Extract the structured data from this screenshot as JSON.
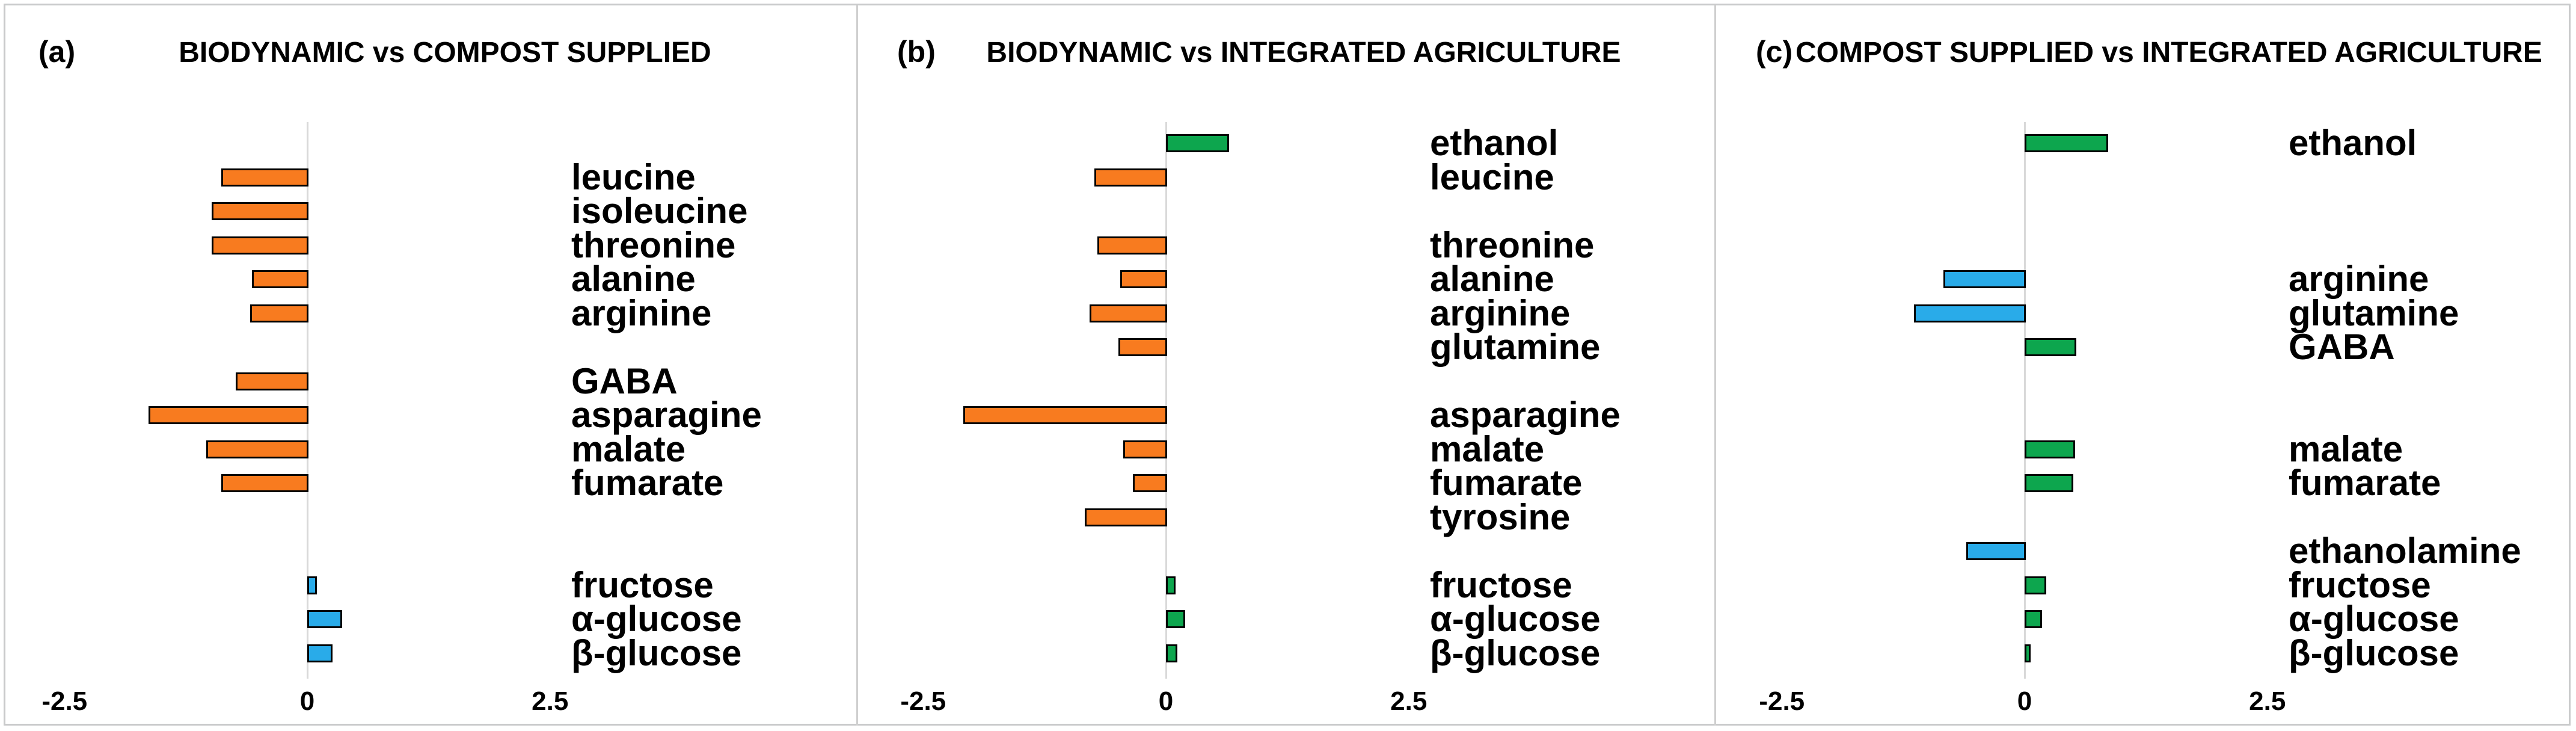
{
  "figure": {
    "colors": {
      "orange": "#f87b1f",
      "green": "#0dא4e",
      "blue": "#29abe9",
      "axis": "#d9d9d9",
      "border": "#c9cacb",
      "text": "#000000"
    },
    "x_axis": {
      "min": -2.5,
      "max": 2.5,
      "ticks": [
        {
          "label": "-2.5",
          "value": -2.5
        },
        {
          "label": "0",
          "value": 0
        },
        {
          "label": "2.5",
          "value": 2.5
        }
      ]
    }
  },
  "chart_data": [
    {
      "type": "bar",
      "orientation": "horizontal",
      "panel_label": "(a)",
      "title": "BIODYNAMIC vs COMPOST SUPPLIED",
      "xlim": [
        -2.5,
        2.5
      ],
      "x_ticks": [
        -2.5,
        0,
        2.5
      ],
      "grid": false,
      "bars": [
        {
          "label": "leucine",
          "value": -0.9,
          "color": "orange",
          "row": 2
        },
        {
          "label": "isoleucine",
          "value": -1.0,
          "color": "orange",
          "row": 3
        },
        {
          "label": "threonine",
          "value": -1.0,
          "color": "orange",
          "row": 4
        },
        {
          "label": "alanine",
          "value": -0.58,
          "color": "orange",
          "row": 5
        },
        {
          "label": "arginine",
          "value": -0.6,
          "color": "orange",
          "row": 6
        },
        {
          "label": "GABA",
          "value": -0.75,
          "color": "orange",
          "row": 8
        },
        {
          "label": "asparagine",
          "value": -1.65,
          "color": "orange",
          "row": 9
        },
        {
          "label": "malate",
          "value": -1.05,
          "color": "orange",
          "row": 10
        },
        {
          "label": "fumarate",
          "value": -0.9,
          "color": "orange",
          "row": 11
        },
        {
          "label": "fructose",
          "value": 0.1,
          "color": "blue",
          "row": 14
        },
        {
          "label": "α-glucose",
          "value": 0.36,
          "color": "blue",
          "row": 15
        },
        {
          "label": "β-glucose",
          "value": 0.26,
          "color": "blue",
          "row": 16
        }
      ]
    },
    {
      "type": "bar",
      "orientation": "horizontal",
      "panel_label": "(b)",
      "title": "BIODYNAMIC vs INTEGRATED AGRICULTURE",
      "xlim": [
        -2.5,
        2.5
      ],
      "x_ticks": [
        -2.5,
        0,
        2.5
      ],
      "grid": false,
      "bars": [
        {
          "label": "ethanol",
          "value": 0.65,
          "color": "green",
          "row": 1
        },
        {
          "label": "leucine",
          "value": -0.75,
          "color": "orange",
          "row": 2
        },
        {
          "label": "threonine",
          "value": -0.72,
          "color": "orange",
          "row": 4
        },
        {
          "label": "alanine",
          "value": -0.48,
          "color": "orange",
          "row": 5
        },
        {
          "label": "arginine",
          "value": -0.8,
          "color": "orange",
          "row": 6
        },
        {
          "label": "glutamine",
          "value": -0.5,
          "color": "orange",
          "row": 7
        },
        {
          "label": "asparagine",
          "value": -2.1,
          "color": "orange",
          "row": 9
        },
        {
          "label": "malate",
          "value": -0.45,
          "color": "orange",
          "row": 10
        },
        {
          "label": "fumarate",
          "value": -0.35,
          "color": "orange",
          "row": 11
        },
        {
          "label": "tyrosine",
          "value": -0.85,
          "color": "orange",
          "row": 12
        },
        {
          "label": "fructose",
          "value": 0.1,
          "color": "green",
          "row": 14
        },
        {
          "label": "α-glucose",
          "value": 0.2,
          "color": "green",
          "row": 15
        },
        {
          "label": "β-glucose",
          "value": 0.12,
          "color": "green",
          "row": 16
        }
      ]
    },
    {
      "type": "bar",
      "orientation": "horizontal",
      "panel_label": "(c)",
      "title": "COMPOST SUPPLIED vs INTEGRATED AGRICULTURE",
      "xlim": [
        -2.5,
        2.5
      ],
      "x_ticks": [
        -2.5,
        0,
        2.5
      ],
      "grid": false,
      "bars": [
        {
          "label": "ethanol",
          "value": 0.86,
          "color": "green",
          "row": 1
        },
        {
          "label": "arginine",
          "value": -0.85,
          "color": "blue",
          "row": 5
        },
        {
          "label": "glutamine",
          "value": -1.15,
          "color": "blue",
          "row": 6
        },
        {
          "label": "GABA",
          "value": 0.53,
          "color": "green",
          "row": 7
        },
        {
          "label": "malate",
          "value": 0.52,
          "color": "green",
          "row": 10
        },
        {
          "label": "fumarate",
          "value": 0.5,
          "color": "green",
          "row": 11
        },
        {
          "label": "ethanolamine",
          "value": -0.61,
          "color": "blue",
          "row": 13
        },
        {
          "label": "fructose",
          "value": 0.22,
          "color": "green",
          "row": 14
        },
        {
          "label": "α-glucose",
          "value": 0.18,
          "color": "green",
          "row": 15
        },
        {
          "label": "β-glucose",
          "value": 0.06,
          "color": "green",
          "row": 16
        }
      ]
    }
  ]
}
